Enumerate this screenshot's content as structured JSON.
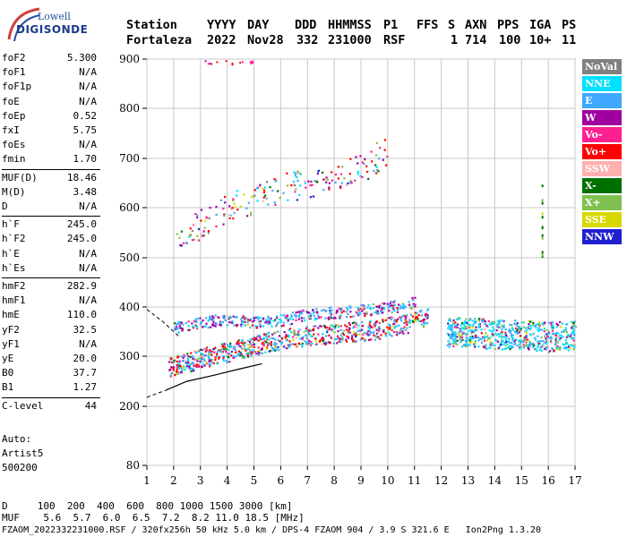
{
  "logo": {
    "top": "Lowell",
    "bottom": "DIGISONDE"
  },
  "header": {
    "col_labels": [
      "Station",
      "YYYY",
      "DAY",
      "DDD",
      "HHMMSS",
      "P1",
      "FFS",
      "S",
      "AXN",
      "PPS",
      "IGA",
      "PS"
    ],
    "col_values": [
      "Fortaleza",
      "2022",
      "Nov28",
      "332",
      "231000",
      "RSF",
      "",
      "1",
      "714",
      "100",
      "10+",
      "11"
    ]
  },
  "params_group1": [
    {
      "label": "foF2",
      "value": "5.300"
    },
    {
      "label": "foF1",
      "value": "N/A"
    },
    {
      "label": "foF1p",
      "value": "N/A"
    },
    {
      "label": "foE",
      "value": "N/A"
    },
    {
      "label": "foEp",
      "value": "0.52"
    },
    {
      "label": "fxI",
      "value": "5.75"
    },
    {
      "label": "foEs",
      "value": "N/A"
    },
    {
      "label": "fmin",
      "value": "1.70"
    }
  ],
  "params_group2": [
    {
      "label": "MUF(D)",
      "value": "18.46"
    },
    {
      "label": "M(D)",
      "value": "3.48"
    },
    {
      "label": "D",
      "value": "N/A"
    }
  ],
  "params_group3": [
    {
      "label": "h`F",
      "value": "245.0"
    },
    {
      "label": "h`F2",
      "value": "245.0"
    },
    {
      "label": "h`E",
      "value": "N/A"
    },
    {
      "label": "h`Es",
      "value": "N/A"
    }
  ],
  "params_group4": [
    {
      "label": "hmF2",
      "value": "282.9"
    },
    {
      "label": "hmF1",
      "value": "N/A"
    },
    {
      "label": "hmE",
      "value": "110.0"
    },
    {
      "label": "yF2",
      "value": "32.5"
    },
    {
      "label": "yF1",
      "value": "N/A"
    },
    {
      "label": "yE",
      "value": "20.0"
    },
    {
      "label": "B0",
      "value": "37.7"
    },
    {
      "label": "B1",
      "value": "1.27"
    }
  ],
  "params_group5": [
    {
      "label": "C-level",
      "value": "44"
    }
  ],
  "auto": {
    "line1": "Auto:",
    "line2": "Artist5",
    "line3": "500200"
  },
  "legend": [
    {
      "label": "NoVal",
      "color": "#808080"
    },
    {
      "label": "NNE",
      "color": "#00e0ff"
    },
    {
      "label": "E",
      "color": "#40a8ff"
    },
    {
      "label": "W",
      "color": "#a000a0"
    },
    {
      "label": "Vo-",
      "color": "#ff2090"
    },
    {
      "label": "Vo+",
      "color": "#ff0000"
    },
    {
      "label": "SSW",
      "color": "#ffb0b0"
    },
    {
      "label": "X-",
      "color": "#007000"
    },
    {
      "label": "X+",
      "color": "#80c050"
    },
    {
      "label": "SSE",
      "color": "#d8d800"
    },
    {
      "label": "NNW",
      "color": "#2020d0"
    }
  ],
  "footer": {
    "d_row": "D     100  200  400  600  800 1000 1500 3000 [km]",
    "muf_row": "MUF    5.6  5.7  6.0  6.5  7.2  8.2 11.0 18.5 [MHz]",
    "file_row": "FZAOM_2022332231000.RSF / 320fx256h 50 kHz 5.0 km / DPS-4 FZAOM 904 / 3.9 S 321.6 E   Ion2Png 1.3.20"
  },
  "chart_data": {
    "type": "scatter",
    "x_ticks": [
      "1",
      "2",
      "3",
      "4",
      "5",
      "6",
      "7",
      "8",
      "9",
      "10",
      "11",
      "12",
      "13",
      "14",
      "15",
      "16",
      "17"
    ],
    "y_ticks": [
      "80",
      "200",
      "300",
      "400",
      "500",
      "600",
      "700",
      "800",
      "900"
    ],
    "xlim": [
      1,
      17
    ],
    "y_axis_note": "virtual height, non-linear scale",
    "grid": "on",
    "traces": [
      {
        "name": "O-trace F2 lower",
        "x": [
          1.8,
          2.5,
          3.2,
          4.0,
          4.8,
          5.5,
          6.5,
          7.5,
          8.5,
          9.5,
          10.5,
          11.5
        ],
        "y": [
          280,
          290,
          300,
          310,
          320,
          330,
          340,
          345,
          350,
          355,
          365,
          380
        ]
      },
      {
        "name": "F2 upper",
        "x": [
          2.0,
          3.0,
          4.0,
          5.0,
          6.0,
          7.0,
          8.0,
          9.0,
          10.0,
          11.0
        ],
        "y": [
          360,
          370,
          375,
          370,
          375,
          385,
          390,
          395,
          400,
          410
        ]
      },
      {
        "name": "second hop",
        "x": [
          2.0,
          3.0,
          4.0,
          5.0,
          6.0,
          7.0,
          8.0,
          9.0,
          10.0
        ],
        "y": [
          530,
          570,
          600,
          620,
          640,
          650,
          660,
          680,
          720
        ]
      },
      {
        "name": "spread 12-17 MHz",
        "x": [
          12.2,
          13.0,
          14.0,
          15.0,
          16.0,
          17.0
        ],
        "y": [
          350,
          350,
          345,
          345,
          340,
          345
        ]
      },
      {
        "name": "profile",
        "x": [
          1.7,
          2.5,
          3.5,
          4.5,
          5.3
        ],
        "y": [
          232,
          250,
          262,
          275,
          285
        ]
      }
    ]
  }
}
